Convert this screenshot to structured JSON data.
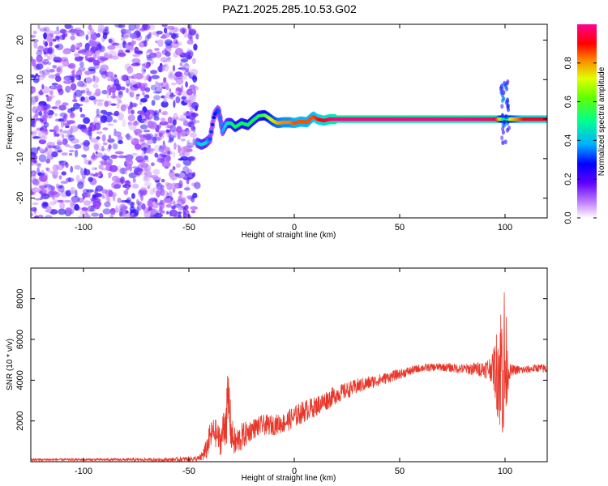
{
  "title": "PAZ1.2025.285.10.53.G02",
  "chart_data": [
    {
      "type": "heatmap",
      "name": "spectrogram",
      "xlabel": "Height of straight line (km)",
      "ylabel": "Frequency (Hz)",
      "xlim": [
        -125,
        120
      ],
      "ylim": [
        -25,
        24
      ],
      "xticks": [
        -100,
        -50,
        0,
        50,
        100
      ],
      "xtick_labels": [
        "-100",
        "-50",
        "0",
        "50",
        "100"
      ],
      "yticks": [
        -20,
        -10,
        0,
        10,
        20
      ],
      "ytick_labels": [
        "-20",
        "-10",
        "0",
        "10",
        "20"
      ],
      "noise_region_x": [
        -125,
        -46
      ],
      "noise_amplitude": 0.15,
      "signal_track": {
        "x": [
          -46,
          -44,
          -42,
          -40,
          -38,
          -36,
          -34,
          -32,
          -30,
          -28,
          -25,
          -22,
          -20,
          -17,
          -14,
          -12,
          -10,
          -8,
          -5,
          -2,
          0,
          3,
          6,
          9,
          11,
          14,
          17,
          20,
          40,
          60,
          80,
          95,
          98,
          100,
          102,
          110,
          120
        ],
        "y": [
          -6,
          -6.5,
          -6,
          -5,
          1,
          2.5,
          -3,
          -1,
          -1,
          -2,
          -1,
          -1.5,
          -0.5,
          0.8,
          1,
          0.3,
          -0.5,
          -1,
          -0.8,
          -0.8,
          -1,
          -0.6,
          -0.8,
          0.7,
          0,
          -0.4,
          0,
          0,
          0,
          0,
          0,
          0,
          0,
          0,
          0,
          0,
          0
        ],
        "amplitude": [
          0.35,
          0.4,
          0.4,
          0.3,
          0.25,
          0.3,
          0.35,
          0.4,
          0.45,
          0.5,
          0.5,
          0.5,
          0.5,
          0.5,
          0.55,
          0.6,
          0.65,
          0.7,
          0.75,
          0.75,
          0.8,
          0.8,
          0.8,
          0.8,
          0.85,
          0.9,
          0.95,
          0.98,
          0.98,
          0.98,
          0.98,
          0.95,
          0.6,
          0.4,
          0.6,
          0.9,
          0.9
        ]
      },
      "colorbar": {
        "label": "Normalized spectral amplitude",
        "range": [
          0,
          1
        ],
        "ticks": [
          0.0,
          0.2,
          0.4,
          0.6,
          0.8
        ],
        "tick_labels": [
          "0.0",
          "0.2",
          "0.4",
          "0.6",
          "0.8"
        ],
        "colors": [
          "#ffffff",
          "#a040ff",
          "#0000ff",
          "#00d0ff",
          "#00ff50",
          "#c8ff00",
          "#ff8000",
          "#ff0000",
          "#ff00a0"
        ]
      }
    },
    {
      "type": "line",
      "name": "snr",
      "xlabel": "Height of straight line (km)",
      "ylabel": "SNR (10 * v/v)",
      "xlim": [
        -125,
        120
      ],
      "ylim": [
        0,
        9500
      ],
      "xticks": [
        -100,
        -50,
        0,
        50,
        100
      ],
      "xtick_labels": [
        "-100",
        "-50",
        "0",
        "50",
        "100"
      ],
      "yticks": [
        2000,
        4000,
        6000,
        8000
      ],
      "ytick_labels": [
        "2000",
        "4000",
        "6000",
        "8000"
      ],
      "color": "#e8372a",
      "envelope": {
        "x": [
          -125,
          -90,
          -60,
          -45,
          -42,
          -40,
          -38,
          -35,
          -33,
          -31,
          -30,
          -28,
          -25,
          -20,
          -15,
          -10,
          -5,
          0,
          5,
          10,
          15,
          20,
          25,
          30,
          40,
          50,
          60,
          70,
          80,
          90,
          94,
          96,
          98,
          99,
          100,
          101,
          102,
          104,
          110,
          115,
          120
        ],
        "mean": [
          100,
          100,
          100,
          150,
          500,
          1200,
          1500,
          1000,
          1800,
          3000,
          1400,
          900,
          1200,
          1600,
          1800,
          1800,
          1900,
          2200,
          2500,
          2700,
          3000,
          3300,
          3500,
          3700,
          4000,
          4300,
          4600,
          4650,
          4550,
          4550,
          4600,
          4500,
          4600,
          5000,
          4500,
          4500,
          4400,
          4500,
          4500,
          4600,
          4550
        ],
        "noise": [
          60,
          60,
          80,
          150,
          500,
          700,
          700,
          700,
          1200,
          1800,
          900,
          700,
          700,
          500,
          500,
          500,
          500,
          550,
          550,
          500,
          500,
          450,
          400,
          380,
          300,
          250,
          200,
          200,
          250,
          400,
          700,
          2000,
          3500,
          4200,
          4500,
          1500,
          400,
          250,
          200,
          200,
          250
        ]
      }
    }
  ]
}
